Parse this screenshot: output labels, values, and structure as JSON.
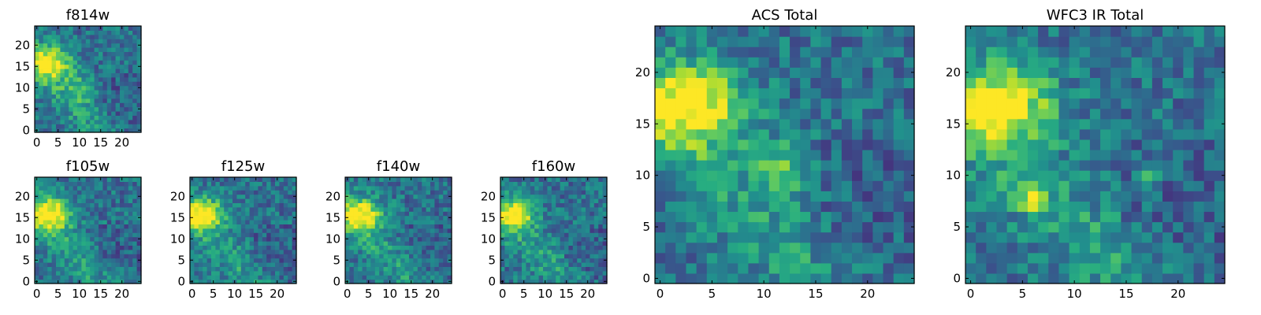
{
  "figure": {
    "background": "#ffffff"
  },
  "chart_data": [
    {
      "type": "heatmap",
      "title": "f814w",
      "x_ticks": [
        0,
        5,
        10,
        15,
        20
      ],
      "y_ticks": [
        0,
        5,
        10,
        15,
        20
      ],
      "xlim": [
        0,
        24
      ],
      "ylim": [
        0,
        24
      ],
      "grid": false,
      "colormap": "viridis",
      "source_center": [
        3,
        16
      ],
      "source_sigma": 3.2,
      "feature": [
        10,
        10,
        2.2,
        0.55
      ],
      "seed": 11
    },
    {
      "type": "heatmap",
      "title": "f105w",
      "x_ticks": [
        0,
        5,
        10,
        15,
        20
      ],
      "y_ticks": [
        0,
        5,
        10,
        15,
        20
      ],
      "xlim": [
        0,
        24
      ],
      "ylim": [
        0,
        24
      ],
      "grid": false,
      "colormap": "viridis",
      "source_center": [
        3,
        16
      ],
      "source_sigma": 3.4,
      "seed": 23
    },
    {
      "type": "heatmap",
      "title": "f125w",
      "x_ticks": [
        0,
        5,
        10,
        15,
        20
      ],
      "y_ticks": [
        0,
        5,
        10,
        15,
        20
      ],
      "xlim": [
        0,
        24
      ],
      "ylim": [
        0,
        24
      ],
      "grid": false,
      "colormap": "viridis",
      "source_center": [
        3,
        16
      ],
      "source_sigma": 3.0,
      "seed": 37
    },
    {
      "type": "heatmap",
      "title": "f140w",
      "x_ticks": [
        0,
        5,
        10,
        15,
        20
      ],
      "y_ticks": [
        0,
        5,
        10,
        15,
        20
      ],
      "xlim": [
        0,
        24
      ],
      "ylim": [
        0,
        24
      ],
      "grid": false,
      "colormap": "viridis",
      "source_center": [
        3,
        16
      ],
      "source_sigma": 3.2,
      "seed": 41
    },
    {
      "type": "heatmap",
      "title": "f160w",
      "x_ticks": [
        0,
        5,
        10,
        15,
        20
      ],
      "y_ticks": [
        0,
        5,
        10,
        15,
        20
      ],
      "xlim": [
        0,
        24
      ],
      "ylim": [
        0,
        24
      ],
      "grid": false,
      "colormap": "viridis",
      "source_center": [
        3,
        16
      ],
      "source_sigma": 3.0,
      "seed": 53
    },
    {
      "type": "heatmap",
      "title": "ACS Total",
      "x_ticks": [
        0,
        5,
        10,
        15,
        20
      ],
      "y_ticks": [
        0,
        5,
        10,
        15,
        20
      ],
      "xlim": [
        0,
        24
      ],
      "ylim": [
        0,
        24
      ],
      "grid": false,
      "colormap": "viridis",
      "source_center": [
        3,
        17
      ],
      "source_sigma": 3.3,
      "feature": [
        12,
        11,
        2.0,
        0.6
      ],
      "seed": 67
    },
    {
      "type": "heatmap",
      "title": "WFC3 IR Total",
      "x_ticks": [
        0,
        5,
        10,
        15,
        20
      ],
      "y_ticks": [
        0,
        5,
        10,
        15,
        20
      ],
      "xlim": [
        0,
        24
      ],
      "ylim": [
        0,
        24
      ],
      "grid": false,
      "colormap": "viridis",
      "source_center": [
        3,
        17
      ],
      "source_sigma": 3.2,
      "feature": [
        6,
        8,
        0.9,
        1.0
      ],
      "feature2": [
        17,
        10,
        0.8,
        1.0
      ],
      "seed": 79
    }
  ]
}
